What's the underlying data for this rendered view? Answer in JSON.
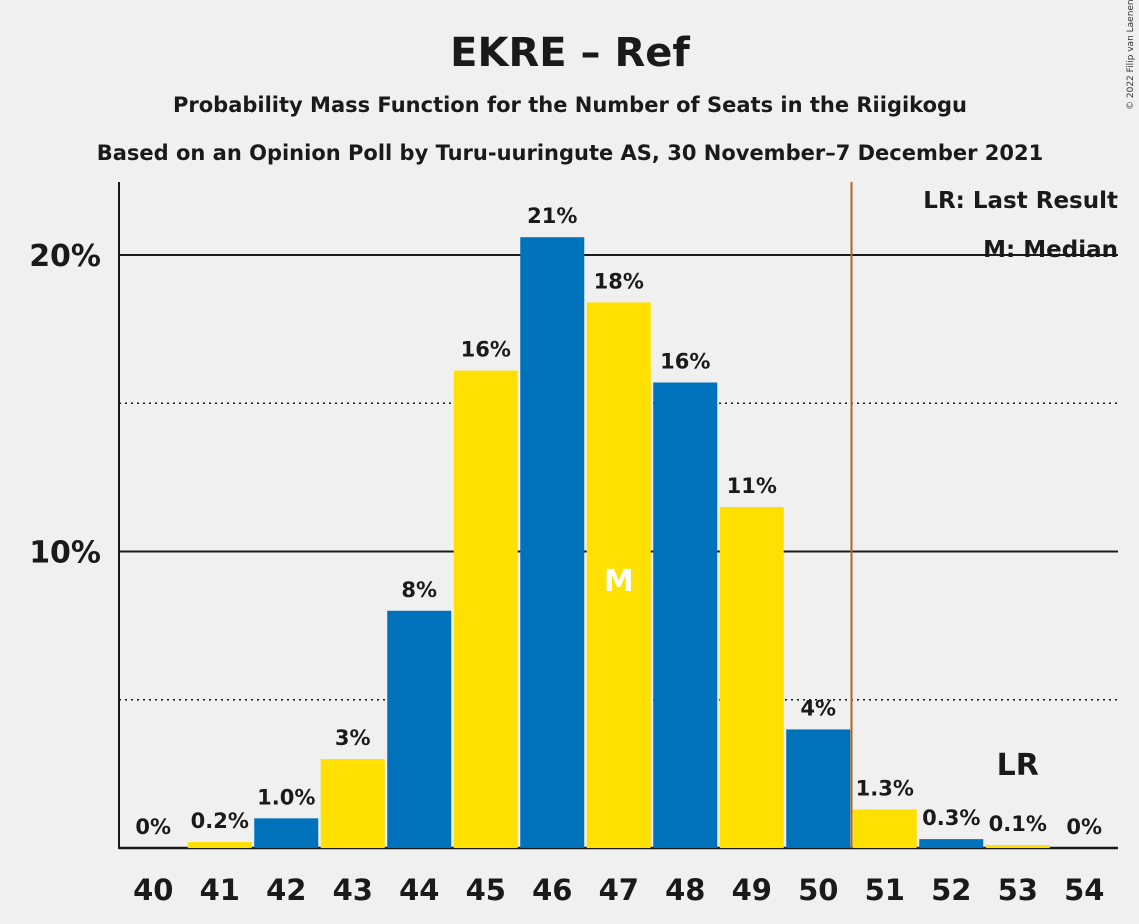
{
  "chart_data": {
    "type": "bar",
    "title": "EKRE – Ref",
    "subtitle": "Probability Mass Function for the Number of Seats in the Riigikogu",
    "subtitle2": "Based on an Opinion Poll by Turu-uuringute AS, 30 November–7 December 2021",
    "copyright": "© 2022 Filip van Laenen",
    "categories": [
      "40",
      "41",
      "42",
      "43",
      "44",
      "45",
      "46",
      "47",
      "48",
      "49",
      "50",
      "51",
      "52",
      "53",
      "54"
    ],
    "values": [
      0,
      0.2,
      1.0,
      3.0,
      8.0,
      16.1,
      20.6,
      18.4,
      15.7,
      11.5,
      4.0,
      1.3,
      0.3,
      0.1,
      0
    ],
    "labels": [
      "0%",
      "0.2%",
      "1.0%",
      "3%",
      "8%",
      "16%",
      "21%",
      "18%",
      "16%",
      "11%",
      "4%",
      "1.3%",
      "0.3%",
      "0.1%",
      "0%"
    ],
    "colors": [
      "#0072bb",
      "#ffe000",
      "#0072bb",
      "#ffe000",
      "#0072bb",
      "#ffe000",
      "#0072bb",
      "#ffe000",
      "#0072bb",
      "#ffe000",
      "#0072bb",
      "#ffe000",
      "#0072bb",
      "#ffe000",
      "#0072bb"
    ],
    "ylim": [
      0,
      22.5
    ],
    "yticks": [
      {
        "value": 10,
        "label": "10%"
      },
      {
        "value": 20,
        "label": "20%"
      }
    ],
    "dotted_gridlines": [
      5,
      15
    ],
    "median_seat": "47",
    "median_marker": "M",
    "last_result_seat": "53",
    "last_result_marker": "LR",
    "last_result_line_after": "50",
    "last_result_line_color": "#b8651b",
    "legend": {
      "last_result": "LR: Last Result",
      "median": "M: Median",
      "position": "top-right"
    }
  }
}
